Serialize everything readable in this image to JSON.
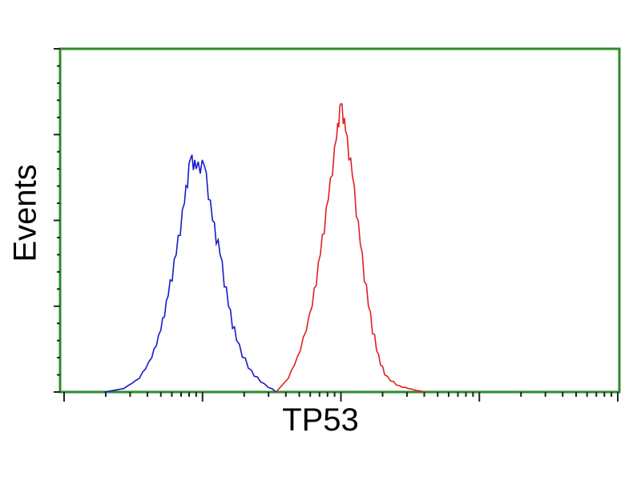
{
  "chart_data": {
    "type": "line",
    "title": "",
    "xlabel": "TP53",
    "ylabel": "Events",
    "x_scale": "log",
    "xlim": [
      1,
      10000
    ],
    "ylim": [
      0,
      100
    ],
    "y_major_ticks": 4,
    "grid": false,
    "axis_color": "#2e8b2e",
    "series": [
      {
        "color": "#1a1acc",
        "x": [
          1.95,
          2.7,
          3.5,
          4.3,
          5.0,
          5.65,
          6.45,
          7.4,
          8.2,
          9.0,
          10.3,
          11.8,
          13.4,
          15.4,
          17.6,
          21.4,
          26.2,
          34
        ],
        "y": [
          0,
          1,
          4,
          10,
          18,
          28,
          40,
          55,
          68,
          65,
          66,
          50,
          40,
          25,
          15,
          7,
          3,
          0
        ]
      },
      {
        "color": "#e02020",
        "x": [
          34,
          41.7,
          50.9,
          62,
          71,
          81,
          93,
          100,
          108,
          121,
          138,
          158,
          181,
          207,
          252,
          306,
          400
        ],
        "y": [
          0,
          4,
          12,
          25,
          40,
          56,
          74,
          84,
          76,
          63,
          43,
          25,
          12,
          5,
          2,
          1,
          0
        ]
      }
    ]
  }
}
